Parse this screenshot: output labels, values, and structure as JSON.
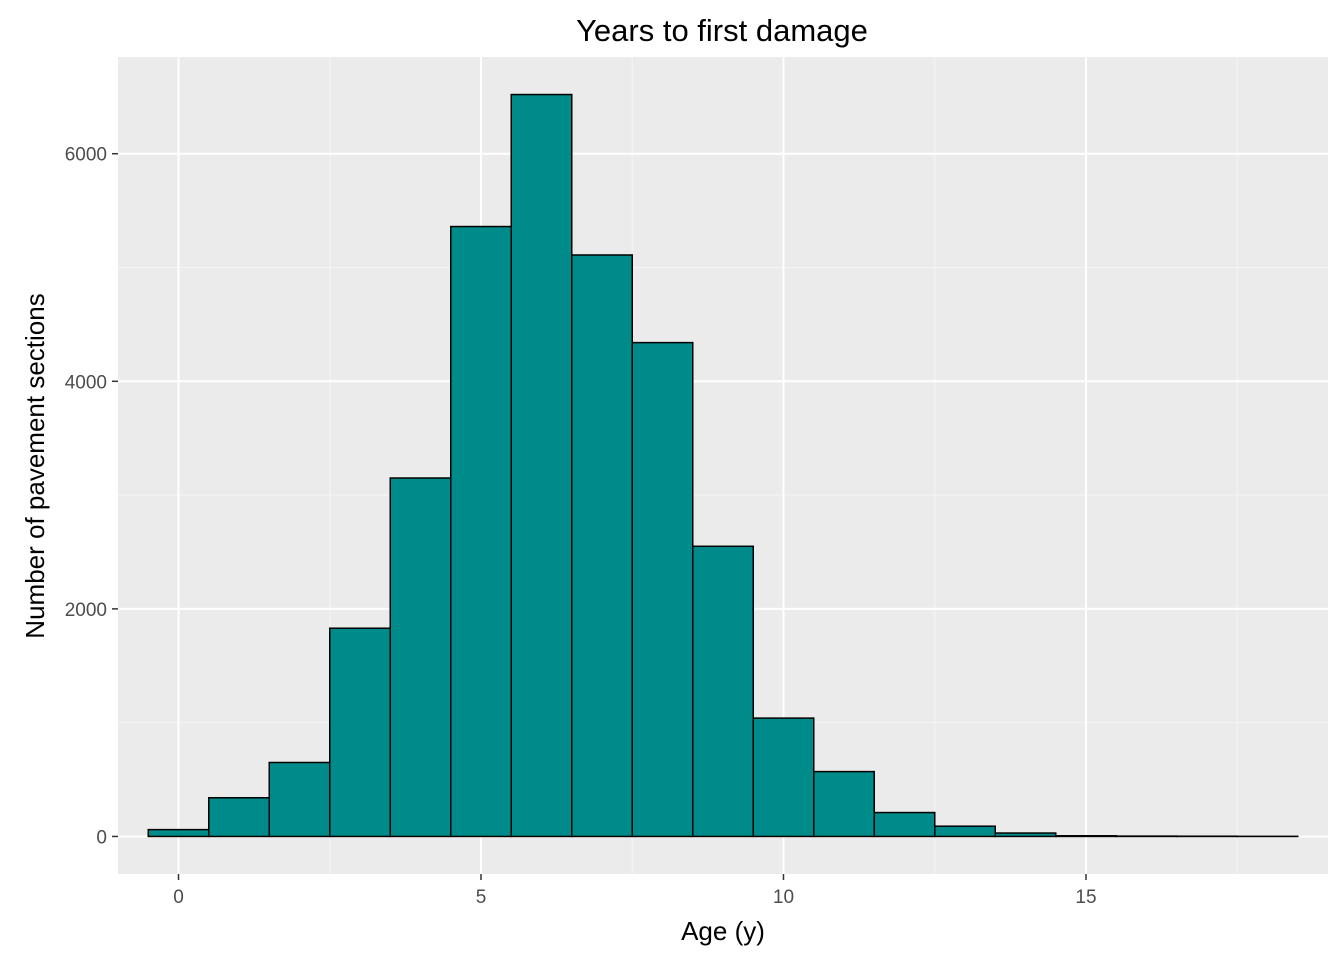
{
  "chart_data": {
    "type": "bar",
    "title": "Years to first damage",
    "xlabel": "Age (y)",
    "ylabel": "Number of pavement sections",
    "x_ticks": [
      0,
      5,
      10,
      15
    ],
    "y_ticks": [
      0,
      2000,
      4000,
      6000
    ],
    "xlim": [
      -1.0,
      19.0
    ],
    "ylim": [
      -330,
      6850
    ],
    "bin_width": 1,
    "bins": [
      {
        "center": 0,
        "count": 60
      },
      {
        "center": 1,
        "count": 340
      },
      {
        "center": 2,
        "count": 650
      },
      {
        "center": 3,
        "count": 1830
      },
      {
        "center": 4,
        "count": 3150
      },
      {
        "center": 5,
        "count": 5360
      },
      {
        "center": 6,
        "count": 6520
      },
      {
        "center": 7,
        "count": 5110
      },
      {
        "center": 8,
        "count": 4340
      },
      {
        "center": 9,
        "count": 2550
      },
      {
        "center": 10,
        "count": 1040
      },
      {
        "center": 11,
        "count": 570
      },
      {
        "center": 12,
        "count": 210
      },
      {
        "center": 13,
        "count": 90
      },
      {
        "center": 14,
        "count": 30
      },
      {
        "center": 15,
        "count": 6
      },
      {
        "center": 16,
        "count": 3
      },
      {
        "center": 17,
        "count": 2
      },
      {
        "center": 18,
        "count": 1
      }
    ],
    "grid": true,
    "legend": "none",
    "colors": {
      "bar_fill": "#008b8b",
      "bar_stroke": "#000000",
      "panel_background": "#ebebeb",
      "grid_major": "#ffffff",
      "grid_minor": "#f5f5f5"
    }
  }
}
